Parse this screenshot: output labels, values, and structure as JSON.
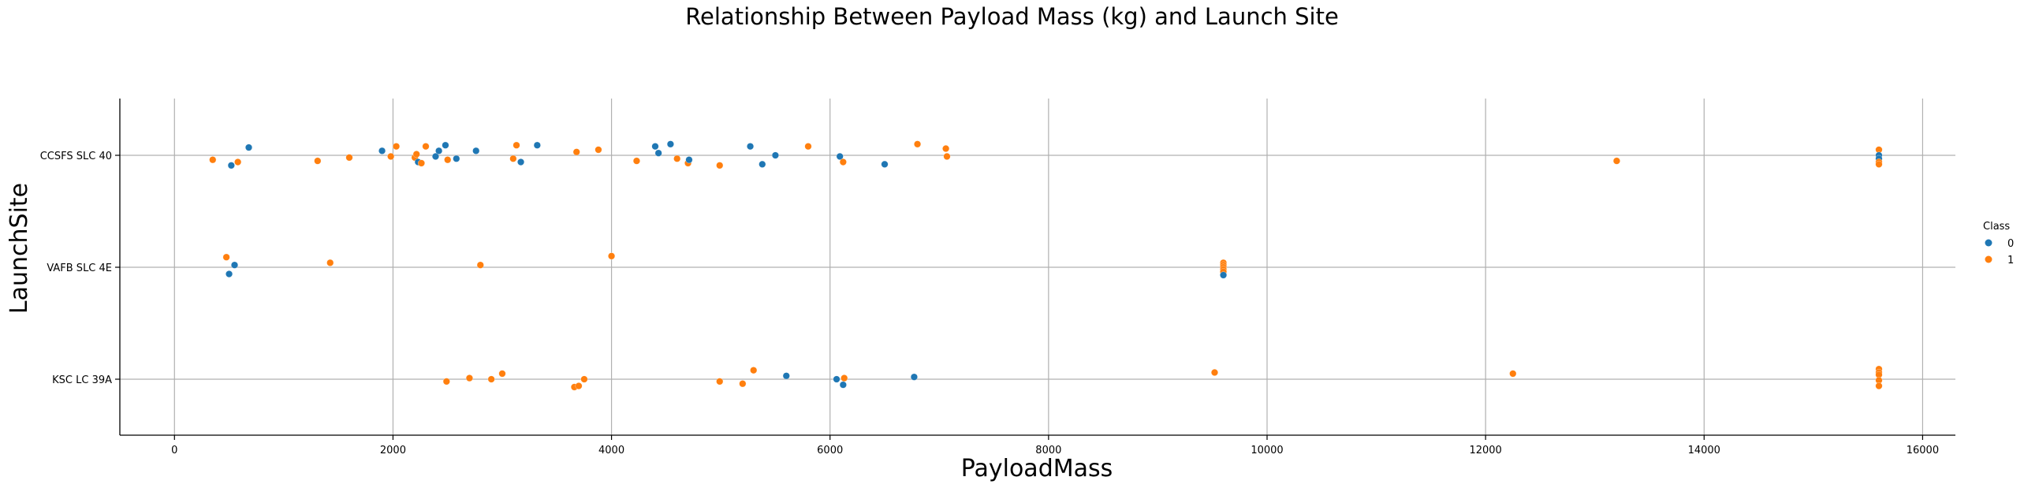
{
  "chart_data": {
    "type": "scatter",
    "title": "Relationship Between Payload Mass (kg) and Launch Site",
    "xlabel": "PayloadMass",
    "ylabel": "LaunchSite",
    "xlim": [
      -500,
      16300
    ],
    "xticks": [
      0,
      2000,
      4000,
      6000,
      8000,
      10000,
      12000,
      14000,
      16000
    ],
    "xtick_labels": [
      "0",
      "2000",
      "4000",
      "6000",
      "8000",
      "10000",
      "12000",
      "14000",
      "16000"
    ],
    "categories": [
      "CCSFS SLC 40",
      "VAFB SLC 4E",
      "KSC LC 39A"
    ],
    "grid": true,
    "legend": {
      "title": "Class",
      "placement": "right",
      "entries": [
        {
          "label": "0",
          "color": "#1f77b4"
        },
        {
          "label": "1",
          "color": "#ff7f0e"
        }
      ]
    },
    "points": [
      {
        "x": 350,
        "site": "CCSFS SLC 40",
        "class": 1,
        "jitter": 0.04
      },
      {
        "x": 520,
        "site": "CCSFS SLC 40",
        "class": 0,
        "jitter": 0.09
      },
      {
        "x": 580,
        "site": "CCSFS SLC 40",
        "class": 1,
        "jitter": 0.06
      },
      {
        "x": 680,
        "site": "CCSFS SLC 40",
        "class": 0,
        "jitter": -0.07
      },
      {
        "x": 1310,
        "site": "CCSFS SLC 40",
        "class": 1,
        "jitter": 0.05
      },
      {
        "x": 1600,
        "site": "CCSFS SLC 40",
        "class": 1,
        "jitter": 0.02
      },
      {
        "x": 1900,
        "site": "CCSFS SLC 40",
        "class": 0,
        "jitter": -0.04
      },
      {
        "x": 1980,
        "site": "CCSFS SLC 40",
        "class": 1,
        "jitter": 0.01
      },
      {
        "x": 2030,
        "site": "CCSFS SLC 40",
        "class": 1,
        "jitter": -0.08
      },
      {
        "x": 2200,
        "site": "CCSFS SLC 40",
        "class": 1,
        "jitter": 0.02
      },
      {
        "x": 2215,
        "site": "CCSFS SLC 40",
        "class": 1,
        "jitter": -0.01
      },
      {
        "x": 2230,
        "site": "CCSFS SLC 40",
        "class": 0,
        "jitter": 0.06
      },
      {
        "x": 2260,
        "site": "CCSFS SLC 40",
        "class": 1,
        "jitter": 0.07
      },
      {
        "x": 2300,
        "site": "CCSFS SLC 40",
        "class": 1,
        "jitter": -0.08
      },
      {
        "x": 2390,
        "site": "CCSFS SLC 40",
        "class": 0,
        "jitter": 0.01
      },
      {
        "x": 2420,
        "site": "CCSFS SLC 40",
        "class": 0,
        "jitter": -0.04
      },
      {
        "x": 2480,
        "site": "CCSFS SLC 40",
        "class": 0,
        "jitter": -0.09
      },
      {
        "x": 2500,
        "site": "CCSFS SLC 40",
        "class": 1,
        "jitter": 0.04
      },
      {
        "x": 2580,
        "site": "CCSFS SLC 40",
        "class": 0,
        "jitter": 0.03
      },
      {
        "x": 2760,
        "site": "CCSFS SLC 40",
        "class": 0,
        "jitter": -0.04
      },
      {
        "x": 3100,
        "site": "CCSFS SLC 40",
        "class": 1,
        "jitter": 0.03
      },
      {
        "x": 3130,
        "site": "CCSFS SLC 40",
        "class": 1,
        "jitter": -0.09
      },
      {
        "x": 3170,
        "site": "CCSFS SLC 40",
        "class": 0,
        "jitter": 0.06
      },
      {
        "x": 3320,
        "site": "CCSFS SLC 40",
        "class": 0,
        "jitter": -0.09
      },
      {
        "x": 3680,
        "site": "CCSFS SLC 40",
        "class": 1,
        "jitter": -0.03
      },
      {
        "x": 3880,
        "site": "CCSFS SLC 40",
        "class": 1,
        "jitter": -0.05
      },
      {
        "x": 4230,
        "site": "CCSFS SLC 40",
        "class": 1,
        "jitter": 0.05
      },
      {
        "x": 4400,
        "site": "CCSFS SLC 40",
        "class": 0,
        "jitter": -0.08
      },
      {
        "x": 4430,
        "site": "CCSFS SLC 40",
        "class": 0,
        "jitter": -0.02
      },
      {
        "x": 4540,
        "site": "CCSFS SLC 40",
        "class": 0,
        "jitter": -0.1
      },
      {
        "x": 4600,
        "site": "CCSFS SLC 40",
        "class": 1,
        "jitter": 0.03
      },
      {
        "x": 4700,
        "site": "CCSFS SLC 40",
        "class": 1,
        "jitter": 0.07
      },
      {
        "x": 4710,
        "site": "CCSFS SLC 40",
        "class": 0,
        "jitter": 0.04
      },
      {
        "x": 4990,
        "site": "CCSFS SLC 40",
        "class": 1,
        "jitter": 0.09
      },
      {
        "x": 5270,
        "site": "CCSFS SLC 40",
        "class": 0,
        "jitter": -0.08
      },
      {
        "x": 5380,
        "site": "CCSFS SLC 40",
        "class": 0,
        "jitter": 0.08
      },
      {
        "x": 5500,
        "site": "CCSFS SLC 40",
        "class": 0,
        "jitter": 0.0
      },
      {
        "x": 5800,
        "site": "CCSFS SLC 40",
        "class": 1,
        "jitter": -0.08
      },
      {
        "x": 6090,
        "site": "CCSFS SLC 40",
        "class": 0,
        "jitter": 0.01
      },
      {
        "x": 6120,
        "site": "CCSFS SLC 40",
        "class": 1,
        "jitter": 0.06
      },
      {
        "x": 6500,
        "site": "CCSFS SLC 40",
        "class": 0,
        "jitter": 0.08
      },
      {
        "x": 6800,
        "site": "CCSFS SLC 40",
        "class": 1,
        "jitter": -0.1
      },
      {
        "x": 7060,
        "site": "CCSFS SLC 40",
        "class": 1,
        "jitter": -0.06
      },
      {
        "x": 7070,
        "site": "CCSFS SLC 40",
        "class": 1,
        "jitter": 0.01
      },
      {
        "x": 13200,
        "site": "CCSFS SLC 40",
        "class": 1,
        "jitter": 0.05
      },
      {
        "x": 15600,
        "site": "CCSFS SLC 40",
        "class": 1,
        "jitter": -0.05
      },
      {
        "x": 15600,
        "site": "CCSFS SLC 40",
        "class": 0,
        "jitter": 0.0
      },
      {
        "x": 15600,
        "site": "CCSFS SLC 40",
        "class": 0,
        "jitter": 0.03
      },
      {
        "x": 15600,
        "site": "CCSFS SLC 40",
        "class": 1,
        "jitter": 0.06
      },
      {
        "x": 15600,
        "site": "CCSFS SLC 40",
        "class": 1,
        "jitter": 0.08
      },
      {
        "x": 475,
        "site": "VAFB SLC 4E",
        "class": 1,
        "jitter": -0.09
      },
      {
        "x": 500,
        "site": "VAFB SLC 4E",
        "class": 0,
        "jitter": 0.06
      },
      {
        "x": 550,
        "site": "VAFB SLC 4E",
        "class": 0,
        "jitter": -0.02
      },
      {
        "x": 1425,
        "site": "VAFB SLC 4E",
        "class": 1,
        "jitter": -0.04
      },
      {
        "x": 2800,
        "site": "VAFB SLC 4E",
        "class": 1,
        "jitter": -0.02
      },
      {
        "x": 4000,
        "site": "VAFB SLC 4E",
        "class": 1,
        "jitter": -0.1
      },
      {
        "x": 9600,
        "site": "VAFB SLC 4E",
        "class": 1,
        "jitter": -0.04
      },
      {
        "x": 9600,
        "site": "VAFB SLC 4E",
        "class": 1,
        "jitter": -0.02
      },
      {
        "x": 9600,
        "site": "VAFB SLC 4E",
        "class": 1,
        "jitter": 0.0
      },
      {
        "x": 9600,
        "site": "VAFB SLC 4E",
        "class": 1,
        "jitter": 0.02
      },
      {
        "x": 9600,
        "site": "VAFB SLC 4E",
        "class": 1,
        "jitter": 0.04
      },
      {
        "x": 9600,
        "site": "VAFB SLC 4E",
        "class": 0,
        "jitter": 0.07
      },
      {
        "x": 2490,
        "site": "KSC LC 39A",
        "class": 1,
        "jitter": 0.02
      },
      {
        "x": 2700,
        "site": "KSC LC 39A",
        "class": 1,
        "jitter": -0.01
      },
      {
        "x": 2900,
        "site": "KSC LC 39A",
        "class": 1,
        "jitter": 0.0
      },
      {
        "x": 3000,
        "site": "KSC LC 39A",
        "class": 1,
        "jitter": -0.05
      },
      {
        "x": 3660,
        "site": "KSC LC 39A",
        "class": 1,
        "jitter": 0.07
      },
      {
        "x": 3700,
        "site": "KSC LC 39A",
        "class": 1,
        "jitter": 0.06
      },
      {
        "x": 3750,
        "site": "KSC LC 39A",
        "class": 1,
        "jitter": 0.0
      },
      {
        "x": 4990,
        "site": "KSC LC 39A",
        "class": 1,
        "jitter": 0.02
      },
      {
        "x": 5200,
        "site": "KSC LC 39A",
        "class": 1,
        "jitter": 0.04
      },
      {
        "x": 5300,
        "site": "KSC LC 39A",
        "class": 1,
        "jitter": -0.08
      },
      {
        "x": 5600,
        "site": "KSC LC 39A",
        "class": 0,
        "jitter": -0.03
      },
      {
        "x": 6060,
        "site": "KSC LC 39A",
        "class": 0,
        "jitter": 0.0
      },
      {
        "x": 6120,
        "site": "KSC LC 39A",
        "class": 0,
        "jitter": 0.05
      },
      {
        "x": 6130,
        "site": "KSC LC 39A",
        "class": 1,
        "jitter": -0.01
      },
      {
        "x": 6770,
        "site": "KSC LC 39A",
        "class": 0,
        "jitter": -0.02
      },
      {
        "x": 9520,
        "site": "KSC LC 39A",
        "class": 1,
        "jitter": -0.06
      },
      {
        "x": 12250,
        "site": "KSC LC 39A",
        "class": 1,
        "jitter": -0.05
      },
      {
        "x": 15600,
        "site": "KSC LC 39A",
        "class": 1,
        "jitter": -0.09
      },
      {
        "x": 15600,
        "site": "KSC LC 39A",
        "class": 1,
        "jitter": -0.06
      },
      {
        "x": 15600,
        "site": "KSC LC 39A",
        "class": 1,
        "jitter": -0.04
      },
      {
        "x": 15600,
        "site": "KSC LC 39A",
        "class": 1,
        "jitter": 0.01
      },
      {
        "x": 15600,
        "site": "KSC LC 39A",
        "class": 1,
        "jitter": 0.06
      }
    ]
  }
}
